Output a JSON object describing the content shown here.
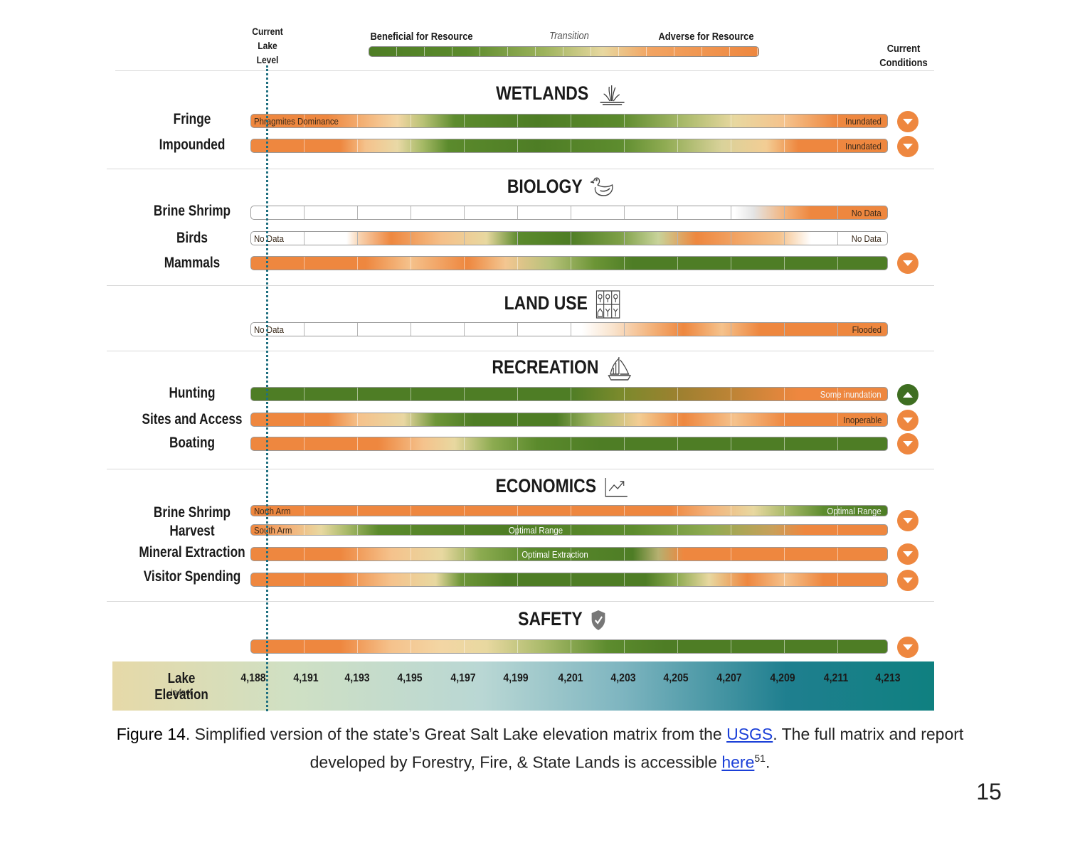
{
  "header": {
    "current_lake_level": [
      "Current",
      "Lake",
      "Level"
    ],
    "legend_beneficial": "Beneficial for Resource",
    "legend_transition": "Transition",
    "legend_adverse": "Adverse for Resource",
    "current_conditions": [
      "Current",
      "Conditions"
    ]
  },
  "sections": {
    "wetlands": {
      "title": "WETLANDS",
      "icon": "reeds-icon"
    },
    "biology": {
      "title": "BIOLOGY",
      "icon": "duck-icon"
    },
    "land_use": {
      "title": "LAND USE",
      "icon": "land-use-icon"
    },
    "recreation": {
      "title": "RECREATION",
      "icon": "sailboat-icon"
    },
    "economics": {
      "title": "ECONOMICS",
      "icon": "trend-chart-icon"
    },
    "safety": {
      "title": "SAFETY",
      "icon": "shield-check-icon"
    }
  },
  "rows": {
    "fringe": {
      "label": "Fringe",
      "left_text": "Phragmites Dominance",
      "right_text": "Inundated",
      "condition": "down"
    },
    "impounded": {
      "label": "Impounded",
      "right_text": "Inundated",
      "condition": "down"
    },
    "brine_shrimp": {
      "label": "Brine Shrimp",
      "right_text": "No Data"
    },
    "birds": {
      "label": "Birds",
      "left_text": "No Data",
      "right_text": "No Data"
    },
    "mammals": {
      "label": "Mammals",
      "condition": "down"
    },
    "land_use": {
      "left_text": "No Data",
      "right_text": "Flooded"
    },
    "hunting": {
      "label": "Hunting",
      "right_text": "Some inundation",
      "condition": "up"
    },
    "sites_access": {
      "label": "Sites and Access",
      "right_text": "Inoperable",
      "condition": "down"
    },
    "boating": {
      "label": "Boating",
      "condition": "down"
    },
    "brine_harvest": {
      "label": [
        "Brine Shrimp",
        "Harvest"
      ],
      "north_text": "North Arm",
      "north_right": "Optimal Range",
      "south_text": "South Arm",
      "south_center": "Optimal Range",
      "condition": "down"
    },
    "mineral": {
      "label": "Mineral Extraction",
      "center_text": "Optimal Extraction",
      "condition": "down"
    },
    "visitor": {
      "label": "Visitor Spending",
      "condition": "down"
    },
    "safety": {
      "condition": "down"
    }
  },
  "elevation": {
    "label": "Lake Elevation",
    "unit": "in feet",
    "ticks": [
      "4,188",
      "4,191",
      "4,193",
      "4,195",
      "4,197",
      "4,199",
      "4,201",
      "4,203",
      "4,205",
      "4,207",
      "4,209",
      "4,211",
      "4,213"
    ]
  },
  "caption": {
    "figure_label": "Figure 14",
    "text1": ". Simplified version of the state’s Great Salt Lake elevation matrix from the ",
    "link1": "USGS",
    "text2": ". The full matrix and report",
    "text3": "developed by Forestry, Fire, & State Lands is accessible ",
    "link2": "here",
    "sup": "51",
    "text4": "."
  },
  "page_number": "15",
  "colors": {
    "beneficial": "#4e7d25",
    "transition": "#e8d8a0",
    "adverse": "#ee873f",
    "lake_marker": "#1f6f80"
  }
}
